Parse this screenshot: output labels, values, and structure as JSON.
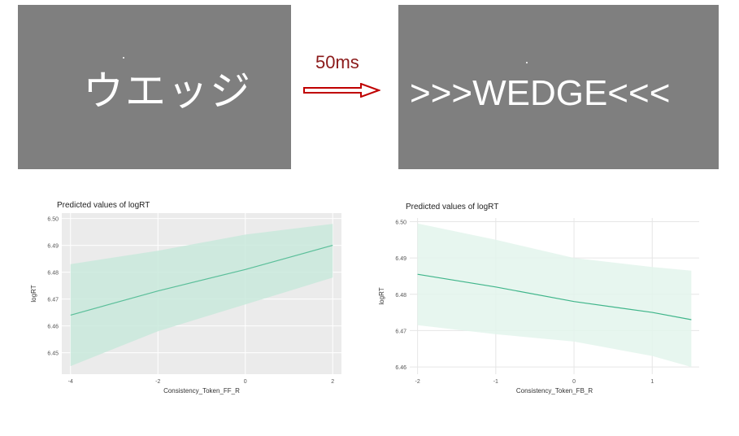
{
  "stimulus": {
    "prime_word": "ウエッジ",
    "timing_label": "50ms",
    "target_word": ">>>WEDGE<<<",
    "arrow_icon": "right-arrow-icon",
    "arrow_color": "#c00000"
  },
  "chart_data": [
    {
      "type": "line",
      "title": "Predicted values of logRT",
      "xlabel": "Consistency_Token_FF_R",
      "ylabel": "logRT",
      "x_ticks": [
        "-4",
        "-2",
        "0",
        "2"
      ],
      "y_ticks": [
        "6.45",
        "6.46",
        "6.47",
        "6.48",
        "6.49",
        "6.50"
      ],
      "xlim": [
        -4.2,
        2.2
      ],
      "ylim": [
        6.442,
        6.502
      ],
      "grid": true,
      "background": "#ebebeb",
      "line_color": "#5bbf9a",
      "band_color": "#c9e9dc",
      "series": [
        {
          "x": [
            -4,
            -2,
            0,
            2
          ],
          "y": [
            6.464,
            6.473,
            6.481,
            6.49
          ],
          "lower": [
            6.445,
            6.458,
            6.468,
            6.478
          ],
          "upper": [
            6.483,
            6.488,
            6.494,
            6.498
          ]
        }
      ]
    },
    {
      "type": "line",
      "title": "Predicted values of logRT",
      "xlabel": "Consistency_Token_FB_R",
      "ylabel": "logRT",
      "x_ticks": [
        "-2",
        "-1",
        "0",
        "1"
      ],
      "y_ticks": [
        "6.46",
        "6.47",
        "6.48",
        "6.49",
        "6.50"
      ],
      "xlim": [
        -2.1,
        1.6
      ],
      "ylim": [
        6.458,
        6.501
      ],
      "grid": true,
      "background": "#ffffff",
      "line_color": "#3fb58a",
      "band_color": "#e3f4ec",
      "series": [
        {
          "x": [
            -2,
            -1,
            0,
            1,
            1.5
          ],
          "y": [
            6.4855,
            6.482,
            6.478,
            6.475,
            6.473
          ],
          "lower": [
            6.4715,
            6.469,
            6.467,
            6.463,
            6.46
          ],
          "upper": [
            6.4995,
            6.495,
            6.49,
            6.4875,
            6.4865
          ]
        }
      ]
    }
  ]
}
